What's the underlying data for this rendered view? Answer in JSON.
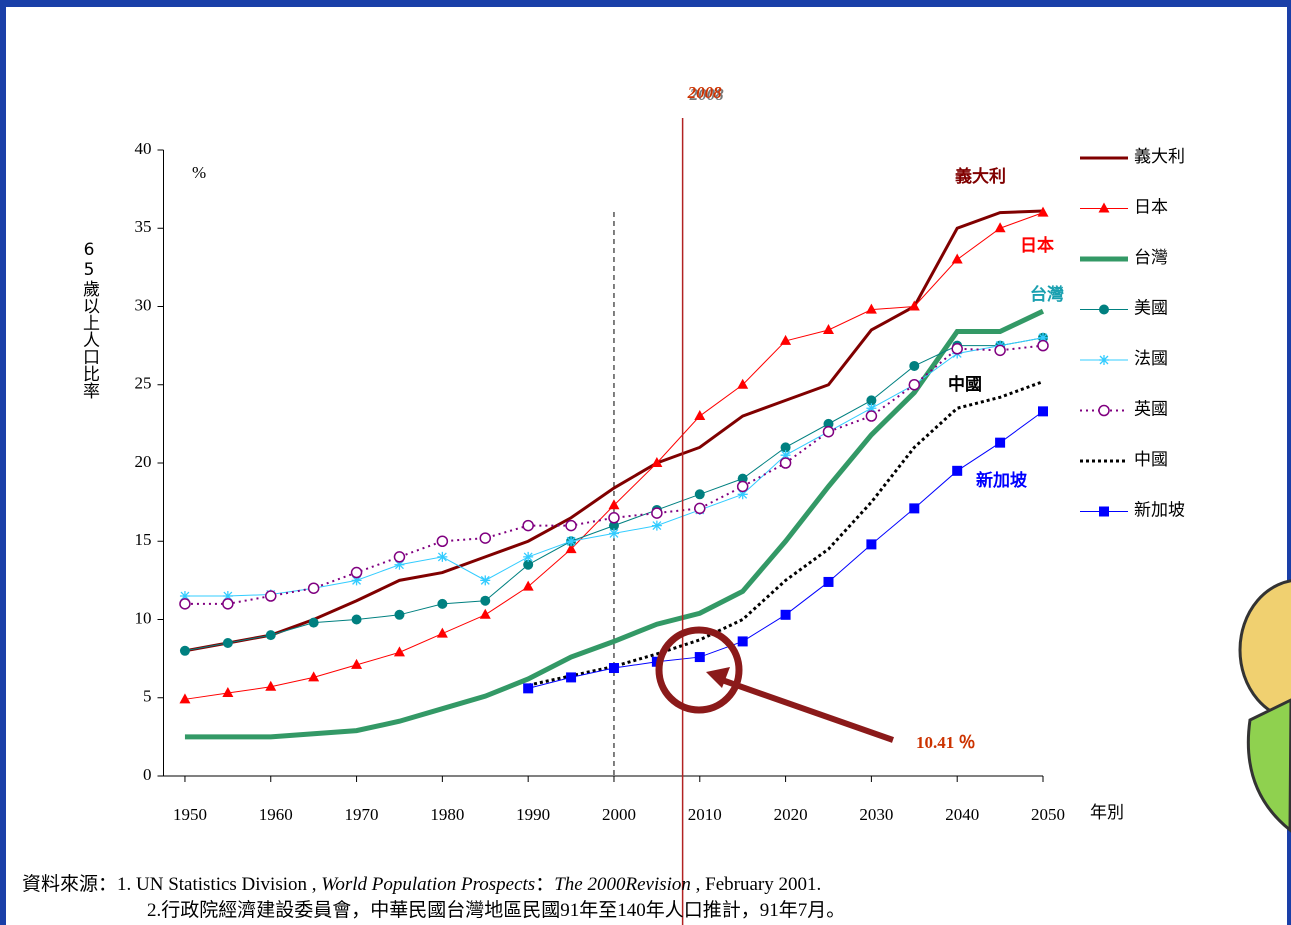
{
  "chart_data": {
    "type": "line",
    "annotation_year": 2008,
    "divider_x": 2000,
    "callout": "10.41 ％",
    "y_unit": "%",
    "ylabel": "65歲以上人口比率",
    "xlabel": "年別",
    "x": [
      1950,
      1955,
      1960,
      1965,
      1970,
      1975,
      1980,
      1985,
      1990,
      1995,
      2000,
      2005,
      2010,
      2015,
      2020,
      2025,
      2030,
      2035,
      2040,
      2045,
      2050
    ],
    "xlim": [
      1947.5,
      2050
    ],
    "ylim": [
      0,
      40
    ],
    "xticks": [
      1950,
      1960,
      1970,
      1980,
      1990,
      2000,
      2010,
      2020,
      2030,
      2040,
      2050
    ],
    "yticks": [
      0,
      5,
      10,
      15,
      20,
      25,
      30,
      35,
      40
    ],
    "series": [
      {
        "name": "義大利",
        "color": "#800000",
        "marker": "none",
        "dash": "solid",
        "width": 3,
        "values": [
          8.0,
          8.5,
          9.0,
          10.0,
          11.2,
          12.5,
          13.0,
          14.0,
          15.0,
          16.5,
          18.4,
          20.0,
          21.0,
          23.0,
          24.0,
          25.0,
          28.5,
          30.0,
          35.0,
          36.0,
          36.1
        ]
      },
      {
        "name": "日本",
        "color": "#ff0000",
        "marker": "triangle",
        "dash": "solid",
        "width": 1,
        "values": [
          4.9,
          5.3,
          5.7,
          6.3,
          7.1,
          7.9,
          9.1,
          10.3,
          12.1,
          14.5,
          17.3,
          20.0,
          23.0,
          25.0,
          27.8,
          28.5,
          29.8,
          30.0,
          33.0,
          35.0,
          36.0
        ]
      },
      {
        "name": "台灣",
        "color": "#339966",
        "marker": "none",
        "dash": "solid",
        "width": 5,
        "values": [
          2.5,
          2.5,
          2.5,
          2.7,
          2.9,
          3.5,
          4.3,
          5.1,
          6.2,
          7.6,
          8.6,
          9.7,
          10.4,
          11.8,
          15.0,
          18.5,
          21.8,
          24.5,
          28.4,
          28.4,
          29.7
        ]
      },
      {
        "name": "美國",
        "color": "#008080",
        "marker": "circle",
        "dash": "solid",
        "width": 1,
        "values": [
          8.0,
          8.5,
          9.0,
          9.8,
          10.0,
          10.3,
          11.0,
          11.2,
          13.5,
          15.0,
          16.0,
          17.0,
          18.0,
          19.0,
          21.0,
          22.5,
          24.0,
          26.2,
          27.5,
          27.5,
          28.0
        ]
      },
      {
        "name": "法國",
        "color": "#33ccff",
        "marker": "star",
        "dash": "solid",
        "width": 1,
        "values": [
          11.5,
          11.5,
          11.6,
          12.0,
          12.5,
          13.5,
          14.0,
          12.5,
          14.0,
          15.0,
          15.5,
          16.0,
          17.0,
          18.0,
          20.5,
          22.0,
          23.5,
          25.0,
          27.0,
          27.5,
          28.0
        ]
      },
      {
        "name": "英國",
        "color": "#800080",
        "marker": "open-circle",
        "dash": "dotted",
        "width": 2,
        "values": [
          11.0,
          11.0,
          11.5,
          12.0,
          13.0,
          14.0,
          15.0,
          15.2,
          16.0,
          16.0,
          16.5,
          16.8,
          17.1,
          18.5,
          20.0,
          22.0,
          23.0,
          25.0,
          27.3,
          27.2,
          27.5
        ]
      },
      {
        "name": "中國",
        "color": "#000000",
        "marker": "none",
        "dash": "dotted",
        "width": 3,
        "values": [
          null,
          null,
          null,
          null,
          null,
          null,
          null,
          null,
          5.8,
          6.4,
          7.0,
          7.8,
          8.7,
          10.0,
          12.5,
          14.5,
          17.5,
          21.0,
          23.5,
          24.2,
          25.2
        ]
      },
      {
        "name": "新加坡",
        "color": "#0000ff",
        "marker": "square",
        "dash": "solid",
        "width": 1,
        "values": [
          null,
          null,
          null,
          null,
          null,
          null,
          null,
          null,
          5.6,
          6.3,
          6.9,
          7.3,
          7.6,
          8.6,
          10.3,
          12.4,
          14.8,
          17.1,
          19.5,
          21.3,
          23.3
        ]
      }
    ],
    "source": {
      "line1": [
        "資料來源：1. UN Statistics Division , ",
        "World Population Prospects",
        "：",
        "The 2000Revision",
        " , February 2001."
      ],
      "line2": "2.行政院經濟建設委員會，中華民國台灣地區民國91年至140年人口推計，91年7月。"
    }
  }
}
